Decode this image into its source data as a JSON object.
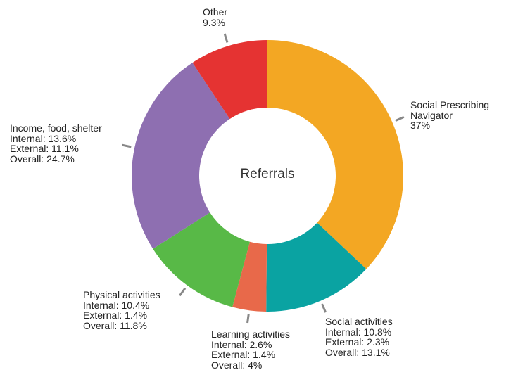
{
  "chart_data": {
    "type": "donut",
    "center_label": "Referrals",
    "categories": [
      "Social Prescribing Navigator",
      "Social activities",
      "Learning activities",
      "Physical activities",
      "Income, food, shelter",
      "Other"
    ],
    "values": [
      37,
      13.1,
      4,
      11.8,
      24.7,
      9.3
    ],
    "value_labels": [
      "37%",
      "Overall: 13.1%",
      "Overall: 4%",
      "Overall: 11.8%",
      "Overall: 24.7%",
      "9.3%"
    ],
    "breakdown": [
      null,
      [
        "Internal: 10.8%",
        "External: 2.3%"
      ],
      [
        "Internal: 2.6%",
        "External: 1.4%"
      ],
      [
        "Internal: 10.4%",
        "External: 1.4%"
      ],
      [
        "Internal: 13.6%",
        "External: 11.1%"
      ],
      null
    ],
    "colors": [
      "#f3a723",
      "#0aa3a2",
      "#e8694a",
      "#58b947",
      "#8e6fb1",
      "#e53332"
    ]
  }
}
